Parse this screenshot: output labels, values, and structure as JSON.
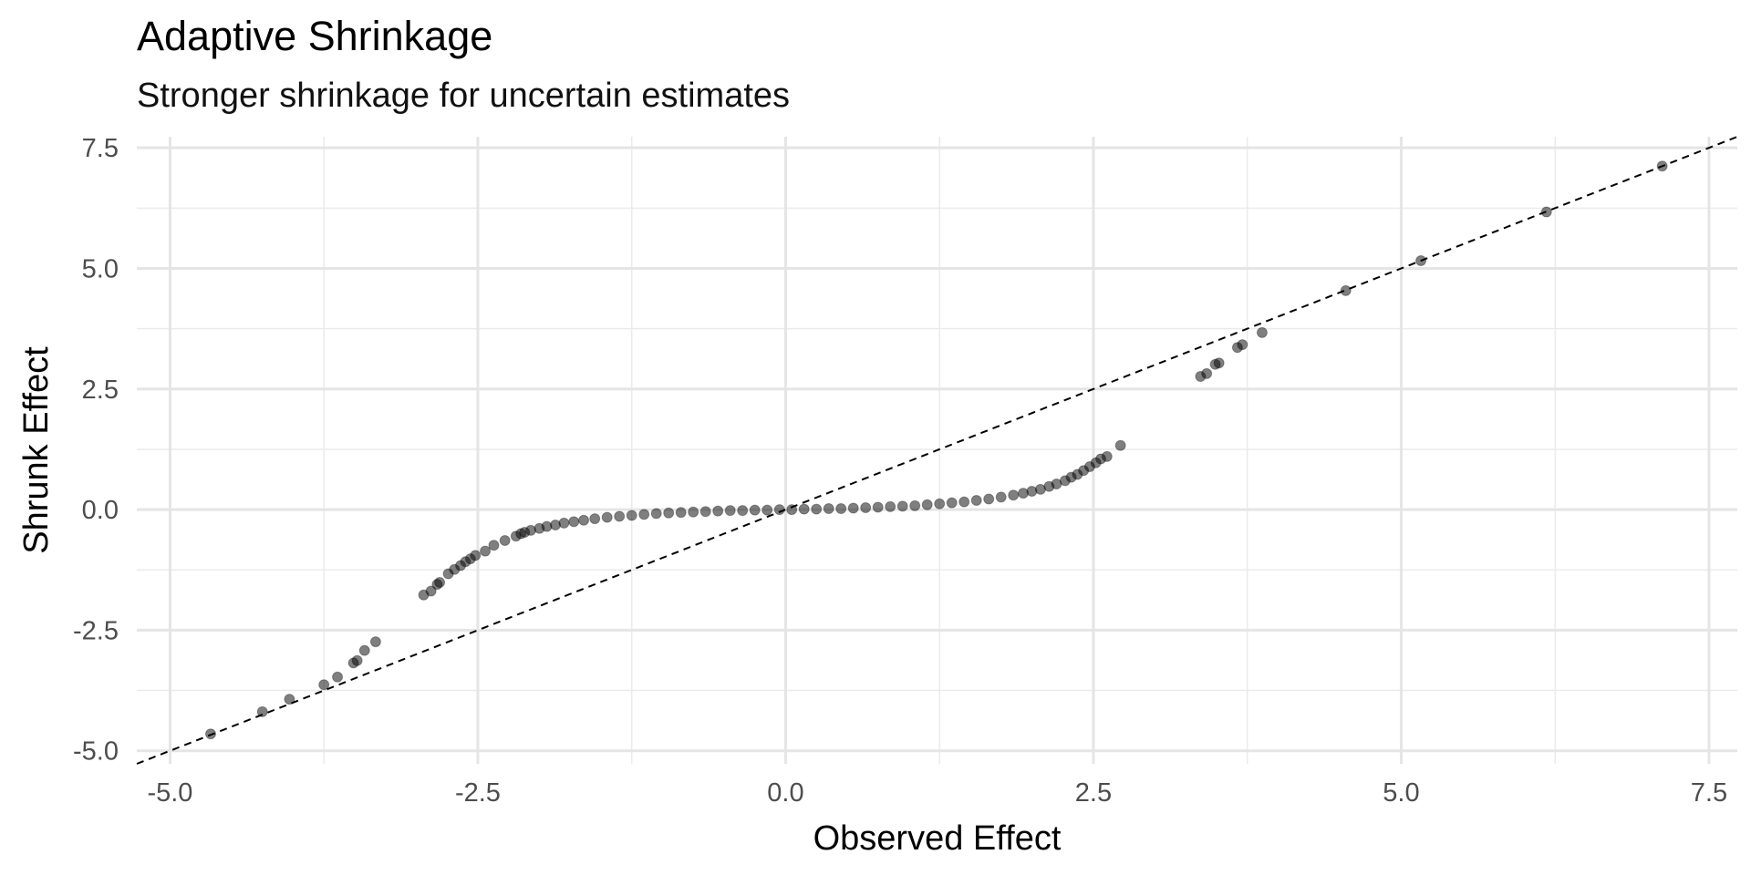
{
  "chart_data": {
    "type": "scatter",
    "title": "Adaptive Shrinkage",
    "subtitle": "Stronger shrinkage for uncertain estimates",
    "xlabel": "Observed Effect",
    "ylabel": "Shrunk Effect",
    "xlim": [
      -5.27,
      7.73
    ],
    "ylim": [
      -5.27,
      7.73
    ],
    "x_ticks": [
      -5.0,
      -2.5,
      0.0,
      2.5,
      5.0,
      7.5
    ],
    "x_tick_labels": [
      "-5.0",
      "-2.5",
      "0.0",
      "2.5",
      "5.0",
      "7.5"
    ],
    "y_ticks": [
      -5.0,
      -2.5,
      0.0,
      2.5,
      5.0,
      7.5
    ],
    "y_tick_labels": [
      "-5.0",
      "-2.5",
      "0.0",
      "2.5",
      "5.0",
      "7.5"
    ],
    "grid": true,
    "reference_line": {
      "slope": 1,
      "intercept": 0,
      "style": "dashed"
    },
    "point_color": "#000000",
    "point_opacity": 0.5,
    "points": [
      [
        -4.67,
        -4.65
      ],
      [
        -4.25,
        -4.19
      ],
      [
        -4.03,
        -3.93
      ],
      [
        -3.75,
        -3.63
      ],
      [
        -3.64,
        -3.47
      ],
      [
        -3.51,
        -3.18
      ],
      [
        -3.48,
        -3.13
      ],
      [
        -3.42,
        -2.92
      ],
      [
        -3.33,
        -2.74
      ],
      [
        -2.94,
        -1.77
      ],
      [
        -2.88,
        -1.69
      ],
      [
        -2.83,
        -1.55
      ],
      [
        -2.81,
        -1.51
      ],
      [
        -2.74,
        -1.33
      ],
      [
        -2.69,
        -1.24
      ],
      [
        -2.64,
        -1.16
      ],
      [
        -2.6,
        -1.08
      ],
      [
        -2.56,
        -1.02
      ],
      [
        -2.52,
        -0.95
      ],
      [
        -2.44,
        -0.86
      ],
      [
        -2.37,
        -0.74
      ],
      [
        -2.28,
        -0.64
      ],
      [
        -2.19,
        -0.55
      ],
      [
        -2.15,
        -0.5
      ],
      [
        -2.12,
        -0.47
      ],
      [
        -2.07,
        -0.43
      ],
      [
        -2.0,
        -0.39
      ],
      [
        -1.94,
        -0.35
      ],
      [
        -1.87,
        -0.32
      ],
      [
        -1.8,
        -0.28
      ],
      [
        -1.72,
        -0.25
      ],
      [
        -1.64,
        -0.22
      ],
      [
        -1.55,
        -0.19
      ],
      [
        -1.45,
        -0.16
      ],
      [
        -1.35,
        -0.14
      ],
      [
        -1.25,
        -0.12
      ],
      [
        -1.15,
        -0.1
      ],
      [
        -1.05,
        -0.08
      ],
      [
        -0.95,
        -0.07
      ],
      [
        -0.85,
        -0.06
      ],
      [
        -0.75,
        -0.05
      ],
      [
        -0.65,
        -0.04
      ],
      [
        -0.55,
        -0.03
      ],
      [
        -0.45,
        -0.02
      ],
      [
        -0.35,
        -0.02
      ],
      [
        -0.25,
        -0.01
      ],
      [
        -0.15,
        -0.01
      ],
      [
        -0.05,
        0.0
      ],
      [
        0.05,
        0.0
      ],
      [
        0.15,
        0.01
      ],
      [
        0.25,
        0.01
      ],
      [
        0.35,
        0.02
      ],
      [
        0.45,
        0.02
      ],
      [
        0.55,
        0.03
      ],
      [
        0.65,
        0.04
      ],
      [
        0.75,
        0.05
      ],
      [
        0.85,
        0.06
      ],
      [
        0.95,
        0.07
      ],
      [
        1.05,
        0.08
      ],
      [
        1.15,
        0.1
      ],
      [
        1.25,
        0.12
      ],
      [
        1.35,
        0.14
      ],
      [
        1.45,
        0.16
      ],
      [
        1.55,
        0.19
      ],
      [
        1.65,
        0.22
      ],
      [
        1.75,
        0.26
      ],
      [
        1.85,
        0.3
      ],
      [
        1.93,
        0.34
      ],
      [
        2.0,
        0.38
      ],
      [
        2.07,
        0.42
      ],
      [
        2.14,
        0.48
      ],
      [
        2.2,
        0.53
      ],
      [
        2.27,
        0.6
      ],
      [
        2.32,
        0.67
      ],
      [
        2.37,
        0.73
      ],
      [
        2.42,
        0.81
      ],
      [
        2.47,
        0.89
      ],
      [
        2.52,
        0.97
      ],
      [
        2.56,
        1.05
      ],
      [
        2.61,
        1.1
      ],
      [
        2.72,
        1.33
      ],
      [
        3.37,
        2.76
      ],
      [
        3.42,
        2.82
      ],
      [
        3.49,
        3.01
      ],
      [
        3.52,
        3.04
      ],
      [
        3.67,
        3.36
      ],
      [
        3.71,
        3.42
      ],
      [
        3.87,
        3.67
      ],
      [
        4.55,
        4.54
      ],
      [
        5.16,
        5.16
      ],
      [
        6.18,
        6.17
      ],
      [
        7.12,
        7.12
      ]
    ]
  }
}
